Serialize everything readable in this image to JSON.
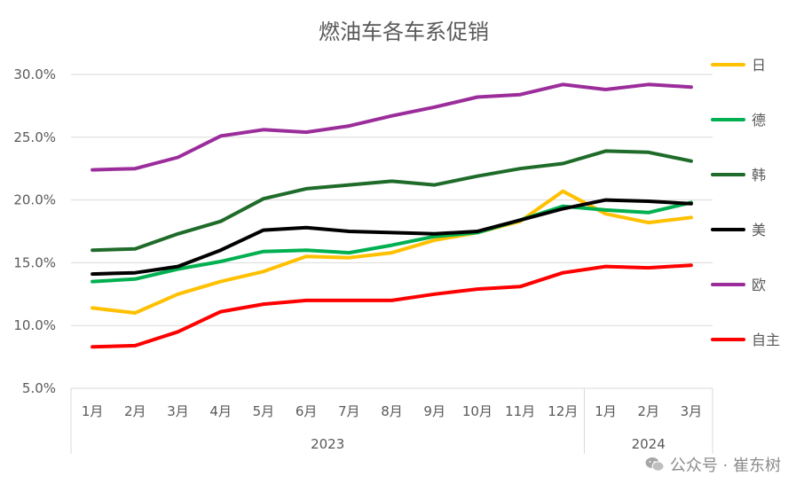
{
  "chart_data": {
    "type": "line",
    "title": "燃油车各车系促销",
    "categories": [
      "1月",
      "2月",
      "3月",
      "4月",
      "5月",
      "6月",
      "7月",
      "8月",
      "9月",
      "10月",
      "11月",
      "12月",
      "1月",
      "2月",
      "3月"
    ],
    "year_groups": [
      {
        "label": "2023",
        "count": 12
      },
      {
        "label": "2024",
        "count": 3
      }
    ],
    "y_ticks": [
      "5.0%",
      "10.0%",
      "15.0%",
      "20.0%",
      "25.0%",
      "30.0%"
    ],
    "ylim": [
      5,
      30
    ],
    "grid": true,
    "legend_position": "right",
    "series": [
      {
        "name": "日",
        "color": "#FFC000",
        "values": [
          11.4,
          11.0,
          12.5,
          13.5,
          14.3,
          15.5,
          15.4,
          15.8,
          16.8,
          17.4,
          18.3,
          20.7,
          18.9,
          18.2,
          18.6
        ]
      },
      {
        "name": "德",
        "color": "#00B050",
        "values": [
          13.5,
          13.7,
          14.5,
          15.1,
          15.9,
          16.0,
          15.8,
          16.4,
          17.1,
          17.4,
          18.4,
          19.5,
          19.2,
          19.0,
          19.8
        ]
      },
      {
        "name": "韩",
        "color": "#1F6B2A",
        "values": [
          16.0,
          16.1,
          17.3,
          18.3,
          20.1,
          20.9,
          21.2,
          21.5,
          21.2,
          21.9,
          22.5,
          22.9,
          23.9,
          23.8,
          23.1
        ]
      },
      {
        "name": "美",
        "color": "#000000",
        "values": [
          14.1,
          14.2,
          14.7,
          16.0,
          17.6,
          17.8,
          17.5,
          17.4,
          17.3,
          17.5,
          18.4,
          19.3,
          20.0,
          19.9,
          19.7
        ]
      },
      {
        "name": "欧",
        "color": "#9B2D9B",
        "values": [
          22.4,
          22.5,
          23.4,
          25.1,
          25.6,
          25.4,
          25.9,
          26.7,
          27.4,
          28.2,
          28.4,
          29.2,
          28.8,
          29.2,
          29.0
        ]
      },
      {
        "name": "自主",
        "color": "#FF0000",
        "values": [
          8.3,
          8.4,
          9.5,
          11.1,
          11.7,
          12.0,
          12.0,
          12.0,
          12.5,
          12.9,
          13.1,
          14.2,
          14.7,
          14.6,
          14.8
        ]
      }
    ]
  },
  "watermark": {
    "icon": "wechat-icon",
    "text": "公众号 · 崔东树"
  }
}
